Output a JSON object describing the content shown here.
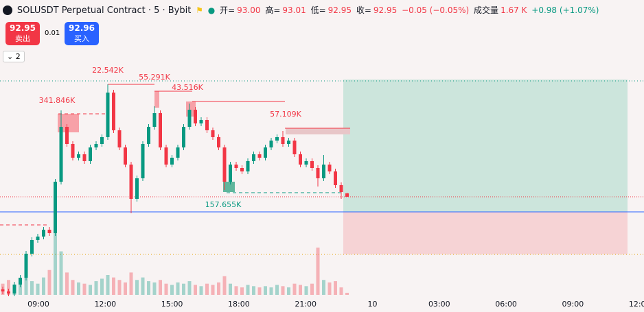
{
  "header": {
    "symbol": "SOLUSDT Perpetual Contract · 5 · Bybit",
    "ohlc": [
      {
        "label": "开=",
        "value": "93.00"
      },
      {
        "label": "高=",
        "value": "93.01"
      },
      {
        "label": "低=",
        "value": "92.95"
      },
      {
        "label": "收=",
        "value": "92.95"
      }
    ],
    "change": "−0.05 (−0.05%)",
    "volume_label": "成交量",
    "volume_value": "1.67 K",
    "volume_change": "+0.98 (+1.07%)"
  },
  "trade": {
    "sell_price": "92.95",
    "sell_label": "卖出",
    "spread": "0.01",
    "buy_price": "92.96",
    "buy_label": "买入"
  },
  "indicator_count": "2",
  "chart_data": {
    "type": "candlestick",
    "open": [
      91.6,
      91.57,
      91.54,
      91.67,
      91.77,
      92.12,
      92.32,
      92.37,
      92.47,
      92.42,
      93.17,
      93.97,
      93.72,
      93.52,
      93.57,
      93.47,
      93.67,
      93.72,
      93.82,
      94.47,
      93.92,
      93.67,
      93.42,
      92.92,
      93.22,
      93.72,
      93.97,
      94.17,
      93.67,
      93.42,
      93.52,
      93.67,
      93.97,
      94.22,
      94.02,
      94.07,
      93.92,
      93.82,
      93.67,
      93.17,
      93.42,
      93.37,
      93.32,
      93.47,
      93.57,
      93.52,
      93.67,
      93.77,
      93.82,
      93.72,
      93.77,
      93.57,
      93.42,
      93.47,
      93.37,
      93.22,
      93.42,
      93.32,
      93.12,
      93.0
    ],
    "high": [
      91.64,
      91.61,
      91.71,
      91.81,
      92.16,
      92.36,
      92.41,
      92.51,
      92.51,
      93.21,
      94.21,
      94.01,
      93.76,
      93.61,
      93.61,
      93.71,
      93.76,
      93.86,
      94.59,
      94.51,
      93.96,
      93.71,
      93.46,
      93.26,
      93.76,
      94.01,
      94.27,
      94.21,
      93.71,
      93.56,
      93.71,
      94.01,
      94.31,
      94.26,
      94.11,
      94.11,
      93.96,
      93.86,
      93.71,
      93.46,
      93.46,
      93.41,
      93.51,
      93.61,
      93.61,
      93.71,
      93.81,
      93.86,
      93.91,
      93.81,
      93.81,
      93.61,
      93.51,
      93.51,
      93.41,
      93.56,
      93.46,
      93.36,
      93.16,
      93.01
    ],
    "low": [
      91.53,
      91.5,
      91.5,
      91.63,
      91.73,
      92.08,
      92.28,
      92.33,
      92.38,
      92.38,
      93.13,
      93.68,
      93.48,
      93.48,
      93.43,
      93.43,
      93.63,
      93.68,
      93.78,
      93.88,
      93.63,
      93.38,
      92.71,
      92.88,
      93.18,
      93.68,
      93.93,
      93.63,
      93.38,
      93.38,
      93.48,
      93.63,
      93.93,
      93.98,
      93.98,
      93.88,
      93.78,
      93.63,
      93.05,
      93.13,
      93.33,
      93.28,
      93.28,
      93.43,
      93.48,
      93.48,
      93.63,
      93.73,
      93.68,
      93.68,
      93.53,
      93.38,
      93.38,
      93.33,
      93.1,
      93.18,
      93.28,
      93.08,
      92.92,
      92.95
    ],
    "close": [
      91.57,
      91.54,
      91.67,
      91.77,
      92.12,
      92.32,
      92.37,
      92.47,
      92.42,
      93.17,
      93.97,
      93.72,
      93.52,
      93.57,
      93.47,
      93.67,
      93.72,
      93.82,
      94.47,
      93.92,
      93.67,
      93.42,
      92.92,
      93.22,
      93.72,
      93.97,
      94.17,
      93.67,
      93.42,
      93.52,
      93.67,
      93.97,
      94.22,
      94.02,
      94.07,
      93.92,
      93.82,
      93.67,
      93.17,
      93.42,
      93.37,
      93.32,
      93.47,
      93.57,
      93.52,
      93.67,
      93.77,
      93.82,
      93.72,
      93.77,
      93.57,
      93.42,
      93.47,
      93.37,
      93.22,
      93.42,
      93.32,
      93.12,
      93.02,
      92.95
    ],
    "volume": [
      9000,
      12000,
      8000,
      10000,
      15000,
      11000,
      9000,
      14000,
      20000,
      60000,
      35000,
      18000,
      12000,
      10000,
      9000,
      8000,
      11000,
      13000,
      16000,
      14000,
      12000,
      10000,
      18000,
      12000,
      14000,
      11000,
      10000,
      12000,
      9000,
      8000,
      10000,
      9000,
      11000,
      8000,
      7000,
      9000,
      8000,
      10000,
      15000,
      9000,
      7000,
      6000,
      8000,
      7000,
      6000,
      7000,
      6000,
      8000,
      7000,
      6000,
      9000,
      8000,
      7000,
      9000,
      38000,
      12000,
      10000,
      11000,
      6000,
      1670
    ],
    "ylim": [
      91.27,
      95.82
    ],
    "volume_lim": [
      0,
      80000
    ],
    "x_labels": [
      "09:00",
      "12:00",
      "15:00",
      "18:00",
      "21:00",
      "10",
      "03:00",
      "06:00",
      "09:00",
      "12:00"
    ],
    "annotations": [
      "22.542K",
      "55.291K",
      "43.516K",
      "341.846K",
      "57.109K",
      "157.655K"
    ],
    "colors": {
      "up": "#089981",
      "down": "#f23645"
    }
  }
}
